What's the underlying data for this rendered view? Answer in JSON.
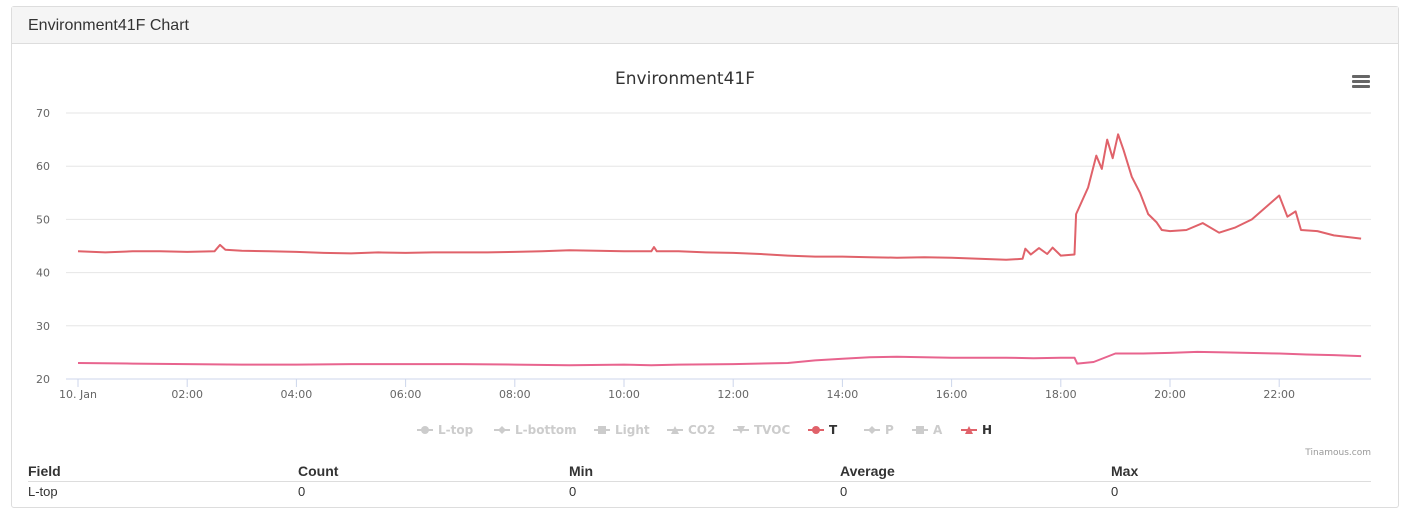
{
  "panel": {
    "title": "Environment41F Chart"
  },
  "menu_icon": "hamburger-menu-icon",
  "credits": "Tinamous.com",
  "chart_data": {
    "type": "line",
    "title": "Environment41F",
    "x_ticks": [
      "10. Jan",
      "02:00",
      "04:00",
      "06:00",
      "08:00",
      "10:00",
      "12:00",
      "14:00",
      "16:00",
      "18:00",
      "20:00",
      "22:00"
    ],
    "x_range_hours": [
      0,
      23.5
    ],
    "y_ticks": [
      20,
      30,
      40,
      50,
      60,
      70
    ],
    "ylim": [
      20,
      70
    ],
    "grid": true,
    "legend_position": "bottom-center",
    "legend": [
      {
        "name": "L-top",
        "visible": false,
        "marker": "circle"
      },
      {
        "name": "L-bottom",
        "visible": false,
        "marker": "diamond"
      },
      {
        "name": "Light",
        "visible": false,
        "marker": "square"
      },
      {
        "name": "CO2",
        "visible": false,
        "marker": "triangle"
      },
      {
        "name": "TVOC",
        "visible": false,
        "marker": "triangle-down"
      },
      {
        "name": "T",
        "visible": true,
        "marker": "circle"
      },
      {
        "name": "P",
        "visible": false,
        "marker": "diamond"
      },
      {
        "name": "A",
        "visible": false,
        "marker": "square"
      },
      {
        "name": "H",
        "visible": true,
        "marker": "triangle"
      }
    ],
    "series": [
      {
        "name": "H",
        "color": "#e0626a",
        "points": [
          [
            0,
            44.0
          ],
          [
            0.5,
            43.8
          ],
          [
            1.0,
            44.0
          ],
          [
            1.5,
            44.0
          ],
          [
            2.0,
            43.9
          ],
          [
            2.5,
            44.0
          ],
          [
            2.6,
            45.2
          ],
          [
            2.7,
            44.3
          ],
          [
            3.0,
            44.1
          ],
          [
            3.5,
            44.0
          ],
          [
            4.0,
            43.9
          ],
          [
            4.5,
            43.7
          ],
          [
            5.0,
            43.6
          ],
          [
            5.5,
            43.8
          ],
          [
            6.0,
            43.7
          ],
          [
            6.5,
            43.8
          ],
          [
            7.0,
            43.8
          ],
          [
            7.5,
            43.8
          ],
          [
            8.0,
            43.9
          ],
          [
            8.5,
            44.0
          ],
          [
            9.0,
            44.2
          ],
          [
            9.5,
            44.1
          ],
          [
            10.0,
            44.0
          ],
          [
            10.5,
            44.0
          ],
          [
            10.55,
            44.8
          ],
          [
            10.6,
            44.0
          ],
          [
            11.0,
            44.0
          ],
          [
            11.5,
            43.8
          ],
          [
            12.0,
            43.7
          ],
          [
            12.5,
            43.5
          ],
          [
            13.0,
            43.2
          ],
          [
            13.5,
            43.0
          ],
          [
            14.0,
            43.0
          ],
          [
            14.5,
            42.9
          ],
          [
            15.0,
            42.8
          ],
          [
            15.5,
            42.9
          ],
          [
            16.0,
            42.8
          ],
          [
            16.5,
            42.6
          ],
          [
            17.0,
            42.4
          ],
          [
            17.3,
            42.6
          ],
          [
            17.35,
            44.5
          ],
          [
            17.45,
            43.4
          ],
          [
            17.6,
            44.6
          ],
          [
            17.75,
            43.5
          ],
          [
            17.85,
            44.7
          ],
          [
            18.0,
            43.2
          ],
          [
            18.25,
            43.4
          ],
          [
            18.28,
            51.0
          ],
          [
            18.5,
            56.0
          ],
          [
            18.65,
            62.0
          ],
          [
            18.75,
            59.5
          ],
          [
            18.85,
            65.0
          ],
          [
            18.95,
            61.5
          ],
          [
            19.05,
            66.0
          ],
          [
            19.15,
            63.0
          ],
          [
            19.3,
            58.0
          ],
          [
            19.45,
            55.0
          ],
          [
            19.6,
            51.0
          ],
          [
            19.75,
            49.5
          ],
          [
            19.85,
            48.0
          ],
          [
            20.0,
            47.8
          ],
          [
            20.3,
            48.0
          ],
          [
            20.6,
            49.3
          ],
          [
            20.9,
            47.5
          ],
          [
            21.2,
            48.5
          ],
          [
            21.5,
            50.0
          ],
          [
            22.0,
            54.5
          ],
          [
            22.15,
            50.5
          ],
          [
            22.3,
            51.5
          ],
          [
            22.4,
            48.0
          ],
          [
            22.7,
            47.8
          ],
          [
            23.0,
            47.0
          ],
          [
            23.5,
            46.4
          ]
        ]
      },
      {
        "name": "T",
        "color": "#e8648e",
        "points": [
          [
            0,
            23.0
          ],
          [
            1.0,
            22.9
          ],
          [
            2.0,
            22.8
          ],
          [
            3.0,
            22.7
          ],
          [
            4.0,
            22.7
          ],
          [
            5.0,
            22.8
          ],
          [
            6.0,
            22.8
          ],
          [
            7.0,
            22.8
          ],
          [
            8.0,
            22.7
          ],
          [
            9.0,
            22.6
          ],
          [
            10.0,
            22.7
          ],
          [
            10.5,
            22.6
          ],
          [
            11.0,
            22.7
          ],
          [
            12.0,
            22.8
          ],
          [
            13.0,
            23.0
          ],
          [
            13.5,
            23.5
          ],
          [
            14.0,
            23.8
          ],
          [
            14.5,
            24.1
          ],
          [
            15.0,
            24.2
          ],
          [
            16.0,
            24.0
          ],
          [
            17.0,
            24.0
          ],
          [
            17.5,
            23.9
          ],
          [
            18.0,
            24.0
          ],
          [
            18.25,
            24.0
          ],
          [
            18.3,
            22.9
          ],
          [
            18.6,
            23.2
          ],
          [
            19.0,
            24.8
          ],
          [
            19.5,
            24.8
          ],
          [
            20.0,
            24.9
          ],
          [
            20.5,
            25.1
          ],
          [
            21.0,
            25.0
          ],
          [
            22.0,
            24.8
          ],
          [
            22.5,
            24.6
          ],
          [
            23.0,
            24.5
          ],
          [
            23.5,
            24.3
          ]
        ]
      }
    ]
  },
  "table": {
    "headers": [
      "Field",
      "Count",
      "Min",
      "Average",
      "Max"
    ],
    "rows": [
      [
        "L-top",
        "0",
        "0",
        "0",
        "0"
      ]
    ]
  }
}
